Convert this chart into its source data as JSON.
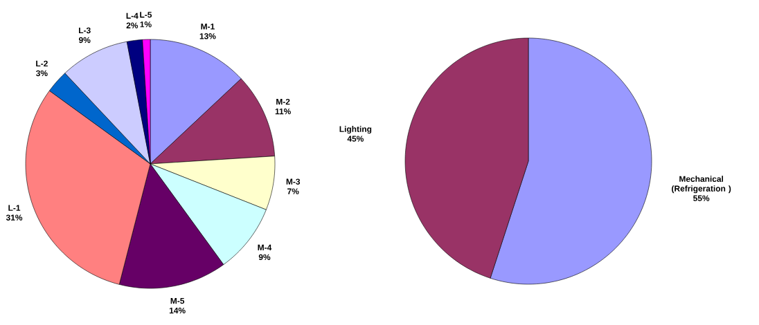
{
  "chart_data": [
    {
      "type": "pie",
      "categories": [
        "M-1",
        "M-2",
        "M-3",
        "M-4",
        "M-5",
        "L-1",
        "L-2",
        "L-3",
        "L-4",
        "L-5"
      ],
      "values": [
        13,
        11,
        7,
        9,
        14,
        31,
        3,
        9,
        2,
        1
      ],
      "value_labels": [
        "13%",
        "11%",
        "7%",
        "9%",
        "14%",
        "31%",
        "3%",
        "9%",
        "2%",
        "1%"
      ],
      "colors": [
        "#9999ff",
        "#993366",
        "#ffffcc",
        "#ccffff",
        "#660066",
        "#ff8080",
        "#0066cc",
        "#ccccff",
        "#000080",
        "#ff00ff"
      ]
    },
    {
      "type": "pie",
      "categories": [
        "Mechanical (Refrigeration )",
        "Lighting"
      ],
      "values": [
        55,
        45
      ],
      "value_labels": [
        "55%",
        "45%"
      ],
      "colors": [
        "#9999ff",
        "#993366"
      ]
    }
  ]
}
